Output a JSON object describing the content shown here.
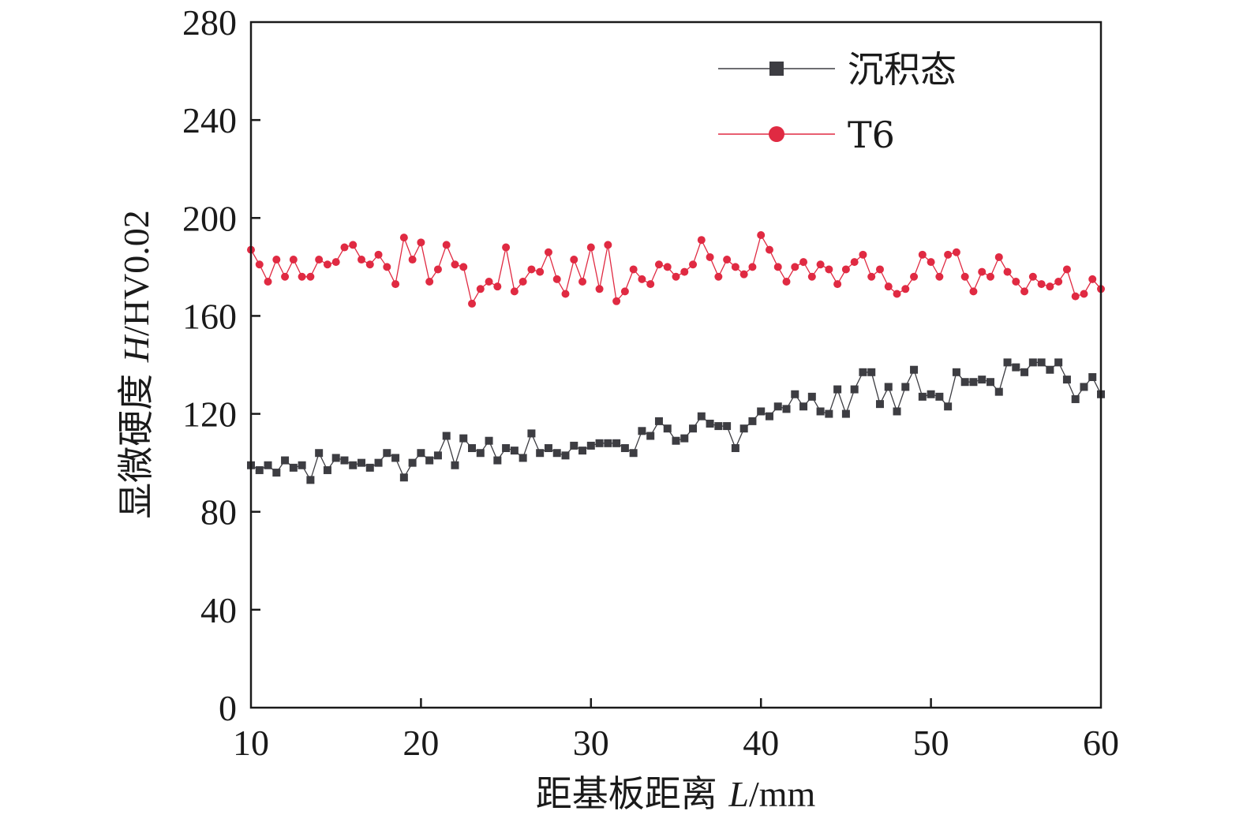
{
  "chart_data": {
    "type": "line",
    "xlabel": "距基板距离 ",
    "xlabel_var": "L",
    "xlabel_unit": "/mm",
    "ylabel": "显微硬度 ",
    "ylabel_var": "H",
    "ylabel_unit": "/HV0.02",
    "xlim": [
      10,
      60
    ],
    "ylim": [
      0,
      280
    ],
    "xticks": [
      10,
      20,
      30,
      40,
      50,
      60
    ],
    "yticks": [
      0,
      40,
      80,
      120,
      160,
      200,
      240,
      280
    ],
    "grid": false,
    "legend_position": "top-right",
    "series": [
      {
        "name": "沉积态",
        "marker": "square",
        "color": "#3d3d42",
        "x": [
          10.0,
          10.5,
          11.0,
          11.5,
          12.0,
          12.5,
          13.0,
          13.5,
          14.0,
          14.5,
          15.0,
          15.5,
          16.0,
          16.5,
          17.0,
          17.5,
          18.0,
          18.5,
          19.0,
          19.5,
          20.0,
          20.5,
          21.0,
          21.5,
          22.0,
          22.5,
          23.0,
          23.5,
          24.0,
          24.5,
          25.0,
          25.5,
          26.0,
          26.5,
          27.0,
          27.5,
          28.0,
          28.5,
          29.0,
          29.5,
          30.0,
          30.5,
          31.0,
          31.5,
          32.0,
          32.5,
          33.0,
          33.5,
          34.0,
          34.5,
          35.0,
          35.5,
          36.0,
          36.5,
          37.0,
          37.5,
          38.0,
          38.5,
          39.0,
          39.5,
          40.0,
          40.5,
          41.0,
          41.5,
          42.0,
          42.5,
          43.0,
          43.5,
          44.0,
          44.5,
          45.0,
          45.5,
          46.0,
          46.5,
          47.0,
          47.5,
          48.0,
          48.5,
          49.0,
          49.5,
          50.0,
          50.5,
          51.0,
          51.5,
          52.0,
          52.5,
          53.0,
          53.5,
          54.0,
          54.5,
          55.0,
          55.5,
          56.0,
          56.5,
          57.0,
          57.5,
          58.0,
          58.5,
          59.0,
          59.5,
          60.0
        ],
        "values": [
          99,
          97,
          99,
          96,
          101,
          98,
          99,
          93,
          104,
          97,
          102,
          101,
          99,
          100,
          98,
          100,
          104,
          102,
          94,
          100,
          104,
          101,
          103,
          111,
          99,
          110,
          106,
          104,
          109,
          101,
          106,
          105,
          102,
          112,
          104,
          106,
          104,
          103,
          107,
          105,
          107,
          108,
          108,
          108,
          106,
          104,
          113,
          111,
          117,
          114,
          109,
          110,
          114,
          119,
          116,
          115,
          115,
          106,
          114,
          117,
          121,
          119,
          123,
          122,
          128,
          123,
          127,
          121,
          120,
          130,
          120,
          130,
          137,
          137,
          124,
          131,
          121,
          131,
          138,
          127,
          128,
          127,
          123,
          137,
          133,
          133,
          134,
          133,
          129,
          141,
          139,
          137,
          141,
          141,
          138,
          141,
          134,
          126,
          131,
          135,
          128
        ]
      },
      {
        "name": "T6",
        "marker": "circle",
        "color": "#e02a42",
        "x": [
          10.0,
          10.5,
          11.0,
          11.5,
          12.0,
          12.5,
          13.0,
          13.5,
          14.0,
          14.5,
          15.0,
          15.5,
          16.0,
          16.5,
          17.0,
          17.5,
          18.0,
          18.5,
          19.0,
          19.5,
          20.0,
          20.5,
          21.0,
          21.5,
          22.0,
          22.5,
          23.0,
          23.5,
          24.0,
          24.5,
          25.0,
          25.5,
          26.0,
          26.5,
          27.0,
          27.5,
          28.0,
          28.5,
          29.0,
          29.5,
          30.0,
          30.5,
          31.0,
          31.5,
          32.0,
          32.5,
          33.0,
          33.5,
          34.0,
          34.5,
          35.0,
          35.5,
          36.0,
          36.5,
          37.0,
          37.5,
          38.0,
          38.5,
          39.0,
          39.5,
          40.0,
          40.5,
          41.0,
          41.5,
          42.0,
          42.5,
          43.0,
          43.5,
          44.0,
          44.5,
          45.0,
          45.5,
          46.0,
          46.5,
          47.0,
          47.5,
          48.0,
          48.5,
          49.0,
          49.5,
          50.0,
          50.5,
          51.0,
          51.5,
          52.0,
          52.5,
          53.0,
          53.5,
          54.0,
          54.5,
          55.0,
          55.5,
          56.0,
          56.5,
          57.0,
          57.5,
          58.0,
          58.5,
          59.0,
          59.5,
          60.0
        ],
        "values": [
          187,
          181,
          174,
          183,
          176,
          183,
          176,
          176,
          183,
          181,
          182,
          188,
          189,
          183,
          181,
          185,
          180,
          173,
          192,
          183,
          190,
          174,
          179,
          189,
          181,
          180,
          165,
          171,
          174,
          172,
          188,
          170,
          174,
          179,
          178,
          186,
          175,
          169,
          183,
          174,
          188,
          171,
          189,
          166,
          170,
          179,
          175,
          173,
          181,
          180,
          176,
          178,
          181,
          191,
          184,
          176,
          183,
          180,
          177,
          180,
          193,
          187,
          180,
          174,
          180,
          182,
          176,
          181,
          179,
          173,
          179,
          182,
          185,
          176,
          179,
          172,
          169,
          171,
          176,
          185,
          182,
          176,
          185,
          186,
          176,
          170,
          178,
          176,
          184,
          178,
          174,
          170,
          176,
          173,
          172,
          174,
          179,
          168,
          169,
          175,
          171
        ]
      }
    ]
  }
}
